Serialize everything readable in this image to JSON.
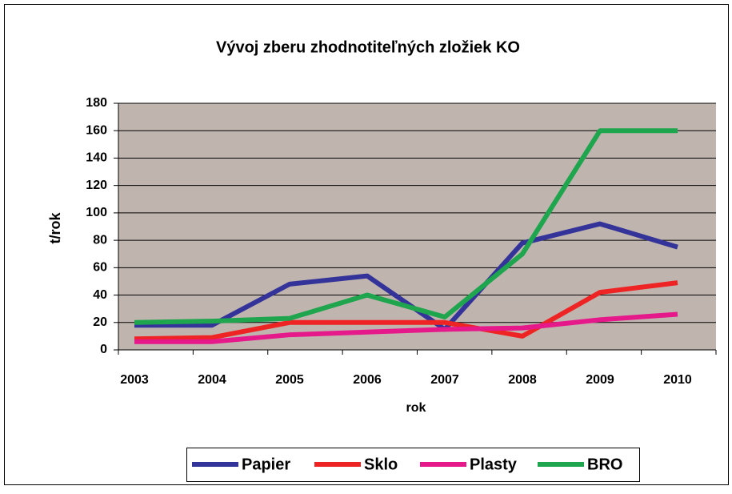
{
  "chart_data": {
    "type": "line",
    "title": "Vývoj zberu zhodnotiteľných zložiek KO",
    "x_label": "rok",
    "y_label": "t/rok",
    "categories": [
      "2003",
      "2004",
      "2005",
      "2006",
      "2007",
      "2008",
      "2009",
      "2010"
    ],
    "series": [
      {
        "name": "Papier",
        "color": "#333399",
        "values": [
          18,
          18,
          48,
          54,
          15,
          78,
          92,
          75
        ]
      },
      {
        "name": "Sklo",
        "color": "#ee2424",
        "values": [
          8,
          9,
          20,
          20,
          20,
          10,
          42,
          49
        ]
      },
      {
        "name": "Plasty",
        "color": "#e6198a",
        "values": [
          6,
          6,
          11,
          13,
          15,
          16,
          22,
          26
        ]
      },
      {
        "name": "BRO",
        "color": "#1ea54e",
        "values": [
          20,
          21,
          23,
          40,
          24,
          70,
          160,
          160
        ]
      }
    ],
    "ylim": [
      0,
      180
    ],
    "yticks": [
      0,
      20,
      40,
      60,
      80,
      100,
      120,
      140,
      160,
      180
    ],
    "grid": true
  }
}
